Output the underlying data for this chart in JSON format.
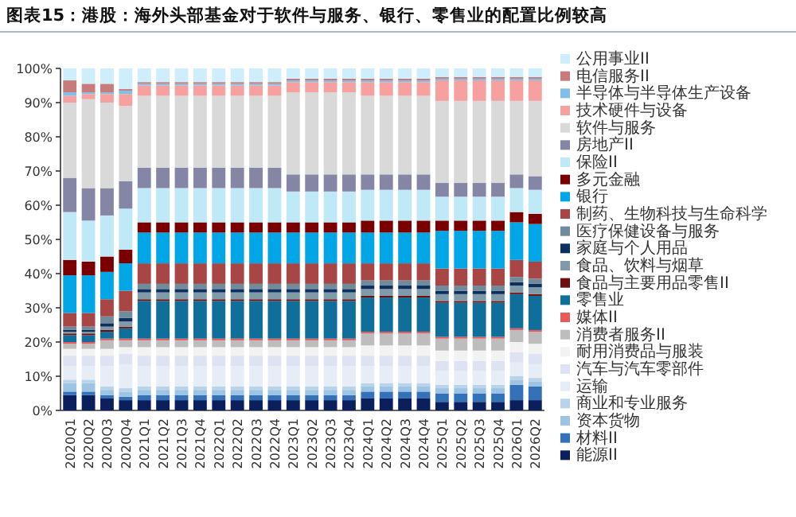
{
  "chart_data": {
    "type": "bar",
    "stacked": true,
    "legend": "right",
    "title": "图表15：港股：海外头部基金对于软件与服务、银行、零售业的配置比例较高",
    "categories": [
      "2020Q1",
      "2020Q2",
      "2020Q3",
      "2020Q4",
      "2021Q1",
      "2021Q2",
      "2021Q3",
      "2021Q4",
      "2022Q1",
      "2022Q2",
      "2022Q3",
      "2022Q4",
      "2023Q1",
      "2023Q2",
      "2023Q3",
      "2023Q4",
      "2024Q1",
      "2024Q2",
      "2024Q3",
      "2024Q4",
      "2025Q1",
      "2025Q2",
      "2025Q3",
      "2025Q4",
      "2026Q1",
      "2026Q2"
    ],
    "ylim": [
      0,
      100
    ],
    "yticks": [
      {
        "value": 0,
        "label": "0%"
      },
      {
        "value": 10,
        "label": "10%"
      },
      {
        "value": 20,
        "label": "20%"
      },
      {
        "value": 30,
        "label": "30%"
      },
      {
        "value": 40,
        "label": "40%"
      },
      {
        "value": 50,
        "label": "50%"
      },
      {
        "value": 60,
        "label": "60%"
      },
      {
        "value": 70,
        "label": "70%"
      },
      {
        "value": 80,
        "label": "80%"
      },
      {
        "value": 90,
        "label": "90%"
      },
      {
        "value": 100,
        "label": "100%"
      }
    ],
    "series": [
      {
        "name": "能源II",
        "color": "#0b1f5c",
        "values": [
          4.5,
          4.5,
          3.5,
          3,
          3,
          3,
          3,
          3,
          3,
          3,
          3,
          3,
          3,
          3,
          3,
          3,
          3.5,
          3.5,
          3.5,
          3.5,
          2.5,
          2.5,
          2.5,
          2.5,
          3,
          3
        ]
      },
      {
        "name": "材料II",
        "color": "#3372b8",
        "values": [
          1,
          1,
          1,
          1,
          1.5,
          1.5,
          1.5,
          1.5,
          1.5,
          1.5,
          1.5,
          1.5,
          1.5,
          1.5,
          1.5,
          1.5,
          2,
          2,
          2,
          2,
          2.5,
          2.5,
          2.5,
          2.5,
          4.5,
          4
        ]
      },
      {
        "name": "资本货物",
        "color": "#9ec4e4",
        "values": [
          2.5,
          2.5,
          1.5,
          1.5,
          1.5,
          1.5,
          1.5,
          1.5,
          1.5,
          1.5,
          1.5,
          1.5,
          1.5,
          1.5,
          1.5,
          1.5,
          1.5,
          1.5,
          1.5,
          1.5,
          1.5,
          1.5,
          1.5,
          1.5,
          1.5,
          1.5
        ]
      },
      {
        "name": "商业和专业服务",
        "color": "#b9d3ea",
        "values": [
          1,
          1,
          1,
          1,
          1,
          1,
          1,
          1,
          1,
          1,
          1,
          1,
          1,
          1,
          1,
          1,
          1,
          1,
          1,
          1,
          1,
          1,
          1,
          1,
          1,
          1
        ]
      },
      {
        "name": "运输",
        "color": "#e6edf7",
        "values": [
          4,
          4,
          6,
          7,
          6,
          6,
          6,
          6,
          6,
          6,
          6,
          6,
          6,
          6,
          6,
          6,
          5,
          5,
          5,
          5,
          4,
          4,
          4,
          4,
          4,
          4
        ]
      },
      {
        "name": "汽车与汽车零部件",
        "color": "#dde3f2",
        "values": [
          3,
          3,
          3,
          3,
          3,
          3,
          3,
          3,
          3,
          3,
          3,
          3,
          3,
          3,
          3,
          3,
          3,
          3,
          3,
          3,
          3,
          3,
          3,
          3,
          3,
          3
        ]
      },
      {
        "name": "耐用消费品与服装",
        "color": "#f2f2f2",
        "values": [
          2,
          2,
          2,
          2,
          2.5,
          2.5,
          2.5,
          2.5,
          2.5,
          2.5,
          2.5,
          2.5,
          2.5,
          2.5,
          2.5,
          2.5,
          3,
          3,
          3,
          3,
          3,
          3,
          3,
          3,
          3,
          3
        ]
      },
      {
        "name": "消费者服务II",
        "color": "#bdbdbd",
        "values": [
          1.5,
          1.5,
          2.5,
          2,
          2,
          2,
          2,
          2,
          2,
          2,
          2,
          2,
          2,
          2,
          2,
          2,
          3.5,
          3.5,
          3.5,
          3.5,
          3.5,
          3.5,
          3.5,
          3.5,
          3.5,
          3.5
        ]
      },
      {
        "name": "媒体II",
        "color": "#e85a5a",
        "values": [
          0.5,
          0.5,
          0.5,
          0.5,
          0.5,
          0.5,
          0.5,
          0.5,
          0.5,
          0.5,
          0.5,
          0.5,
          0.5,
          0.5,
          0.5,
          0.5,
          0.5,
          0.5,
          0.5,
          0.5,
          0.5,
          0.5,
          0.5,
          0.5,
          0.5,
          0.5
        ]
      },
      {
        "name": "零售业",
        "color": "#0f6f9a",
        "values": [
          2,
          2,
          2,
          3,
          11,
          11,
          11,
          11,
          11,
          11,
          11,
          11,
          11,
          11,
          11,
          11,
          10,
          10,
          10,
          10,
          10,
          10,
          10,
          10,
          10,
          10
        ]
      },
      {
        "name": "食品与主要用品零售II",
        "color": "#6e0f0f",
        "values": [
          0.5,
          0.5,
          0.5,
          0.5,
          0.5,
          0.5,
          0.5,
          0.5,
          0.5,
          0.5,
          0.5,
          0.5,
          0.5,
          0.5,
          0.5,
          0.5,
          0.5,
          0.5,
          0.5,
          0.5,
          0.5,
          0.5,
          0.5,
          0.5,
          0.5,
          0.5
        ]
      },
      {
        "name": "食品、饮料与烟草",
        "color": "#7f9aa8",
        "values": [
          0.5,
          0.5,
          1,
          1.5,
          2,
          2,
          2,
          2,
          2,
          2,
          2,
          2,
          2,
          2,
          2,
          2,
          2,
          2,
          2,
          2,
          2,
          2,
          2,
          2,
          2,
          2
        ]
      },
      {
        "name": "家庭与个人用品",
        "color": "#0d2f5e",
        "values": [
          0.5,
          0.5,
          1,
          1,
          1,
          1,
          1,
          1,
          1,
          1,
          1,
          1,
          1,
          1,
          1,
          1,
          1,
          1,
          1,
          1,
          1,
          1,
          1,
          1,
          1,
          1
        ]
      },
      {
        "name": "医疗保健设备与服务",
        "color": "#6f8c9c",
        "values": [
          1,
          1,
          2,
          2,
          1.5,
          1.5,
          1.5,
          1.5,
          1.5,
          1.5,
          1.5,
          1.5,
          1.5,
          1.5,
          1.5,
          1.5,
          1.5,
          1.5,
          1.5,
          1.5,
          1.5,
          1.5,
          1.5,
          1.5,
          1.5,
          1.5
        ]
      },
      {
        "name": "制药、生物科技与生命科学",
        "color": "#a84545",
        "values": [
          4,
          4,
          5,
          6,
          6,
          6,
          6,
          6,
          6,
          6,
          6,
          6,
          6,
          6,
          6,
          6,
          5,
          5,
          5,
          5,
          5,
          5,
          5,
          5,
          5,
          5
        ]
      },
      {
        "name": "银行",
        "color": "#00a6e6",
        "values": [
          11,
          11,
          8,
          8,
          9,
          9,
          9,
          9,
          9,
          9,
          9,
          9,
          9,
          9,
          9,
          9,
          9,
          9,
          9,
          9,
          11,
          11,
          11,
          11,
          11,
          11
        ]
      },
      {
        "name": "多元金融",
        "color": "#7a0000",
        "values": [
          4.5,
          4,
          4.5,
          4,
          3,
          3,
          3,
          3,
          3,
          3,
          3,
          3,
          3,
          3,
          3,
          3,
          3.5,
          3.5,
          3.5,
          3.5,
          3,
          3,
          3,
          3,
          3,
          3
        ]
      },
      {
        "name": "保险II",
        "color": "#bfe9f7",
        "values": [
          14,
          12,
          12,
          12,
          10,
          10,
          10,
          10,
          10,
          10,
          10,
          10,
          9,
          9,
          9,
          9,
          9,
          9,
          9,
          9,
          7,
          7,
          7,
          7,
          7,
          7
        ]
      },
      {
        "name": "房地产II",
        "color": "#8586a6",
        "values": [
          10,
          9.5,
          8,
          8,
          6,
          6,
          6,
          6,
          6,
          6,
          6,
          6,
          5,
          5,
          5,
          5,
          4.5,
          4.5,
          4.5,
          4.5,
          4,
          4,
          4,
          4,
          4,
          4
        ]
      },
      {
        "name": "软件与服务",
        "color": "#d9d9d9",
        "values": [
          22,
          26,
          25,
          22,
          21,
          21,
          21,
          21,
          21,
          21,
          21,
          21,
          24,
          24,
          24,
          24,
          23,
          23,
          23,
          23,
          24,
          24,
          24,
          24,
          21.5,
          22
        ]
      },
      {
        "name": "技术硬件与设备",
        "color": "#f7a0a0",
        "values": [
          2,
          1.5,
          2.5,
          3.5,
          3,
          3,
          3,
          3,
          3,
          3,
          3,
          3,
          3,
          3,
          3,
          3,
          4,
          4,
          4,
          4,
          6,
          6,
          6,
          6,
          6,
          6
        ]
      },
      {
        "name": "半导体与半导体生产设备",
        "color": "#7fbfe8",
        "values": [
          1,
          0.5,
          0.5,
          1,
          0.5,
          0.5,
          0.5,
          0.5,
          0.5,
          0.5,
          0.5,
          0.5,
          0.5,
          0.5,
          0.5,
          0.5,
          0.5,
          0.5,
          0.5,
          0.5,
          0.5,
          0.5,
          0.5,
          0.5,
          0.5,
          0.5
        ]
      },
      {
        "name": "电信服务II",
        "color": "#c77b7b",
        "values": [
          3.5,
          2.5,
          2.5,
          0.5,
          0.5,
          0.5,
          0.5,
          0.5,
          0.5,
          0.5,
          0.5,
          0.5,
          0.5,
          0.5,
          0.5,
          0.5,
          0.5,
          0.5,
          0.5,
          0.5,
          0.5,
          0.5,
          0.5,
          0.5,
          0.5,
          0.5
        ]
      },
      {
        "name": "公用事业II",
        "color": "#cdeefa",
        "values": [
          3.5,
          4.5,
          4.5,
          6,
          4,
          4,
          4,
          4,
          4,
          4,
          4,
          4,
          3,
          3,
          3,
          3,
          3,
          3,
          3,
          3,
          2.5,
          2.5,
          2.5,
          2.5,
          2.5,
          2.5
        ]
      }
    ]
  }
}
